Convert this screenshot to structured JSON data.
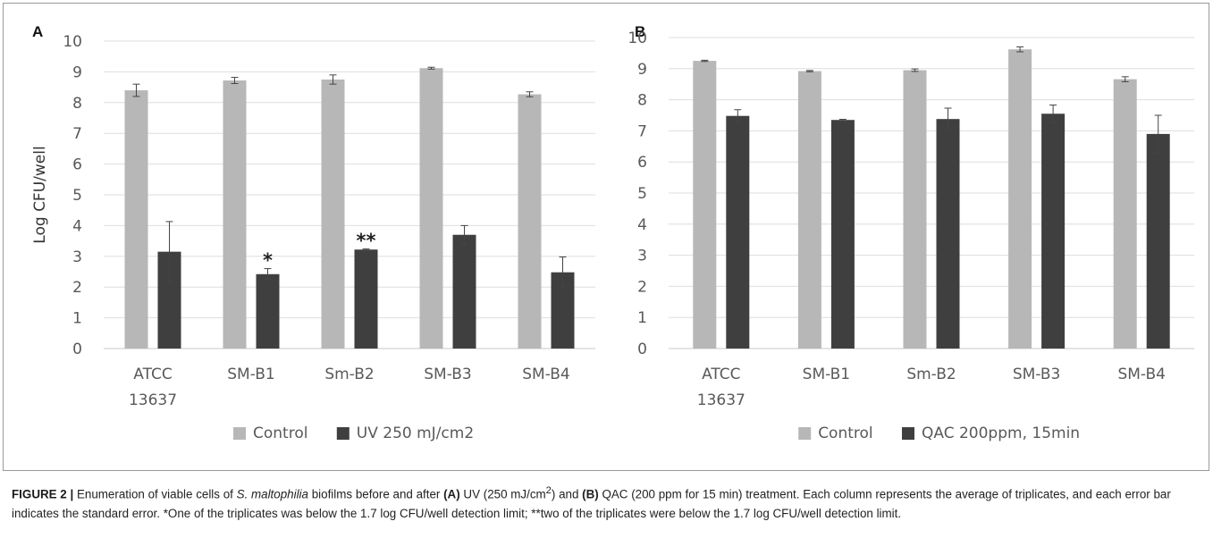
{
  "colors": {
    "control": "#b7b7b7",
    "treatment": "#3f3f3f",
    "grid": "#dedede",
    "axis_text": "#595959"
  },
  "chart_data": [
    {
      "panel_label": "A",
      "type": "bar",
      "ylabel": "Log CFU/well",
      "ylim": [
        0,
        10
      ],
      "yticks": [
        "0",
        "1",
        "2",
        "3",
        "4",
        "5",
        "6",
        "7",
        "8",
        "9",
        "10"
      ],
      "grid": true,
      "legend_position": "bottom",
      "categories": [
        [
          "ATCC",
          "13637"
        ],
        [
          "SM-B1"
        ],
        [
          "Sm-B2"
        ],
        [
          "SM-B3"
        ],
        [
          "SM-B4"
        ]
      ],
      "series": [
        {
          "name": "Control",
          "values": [
            8.4,
            8.72,
            8.75,
            9.12,
            8.27
          ],
          "errors": [
            0.2,
            0.1,
            0.15,
            0.03,
            0.08
          ]
        },
        {
          "name": "UV 250 mJ/cm2",
          "values": [
            3.15,
            2.42,
            3.22,
            3.7,
            2.48
          ],
          "errors": [
            0.98,
            0.18,
            0.02,
            0.3,
            0.5
          ]
        }
      ],
      "annotations": [
        {
          "category_index": 1,
          "series_index": 1,
          "text": "*"
        },
        {
          "category_index": 2,
          "series_index": 1,
          "text": "**"
        }
      ]
    },
    {
      "panel_label": "B",
      "type": "bar",
      "ylabel": "",
      "ylim": [
        0,
        10
      ],
      "yticks": [
        "0",
        "1",
        "2",
        "3",
        "4",
        "5",
        "6",
        "7",
        "8",
        "9",
        "10"
      ],
      "grid": true,
      "legend_position": "bottom",
      "categories": [
        [
          "ATCC",
          "13637"
        ],
        [
          "SM-B1"
        ],
        [
          "Sm-B2"
        ],
        [
          "SM-B3"
        ],
        [
          "SM-B4"
        ]
      ],
      "series": [
        {
          "name": "Control",
          "values": [
            9.25,
            8.92,
            8.95,
            9.62,
            8.66
          ],
          "errors": [
            0.02,
            0.02,
            0.04,
            0.08,
            0.08
          ]
        },
        {
          "name": "QAC 200ppm, 15min",
          "values": [
            7.48,
            7.35,
            7.38,
            7.55,
            6.9
          ],
          "errors": [
            0.2,
            0.02,
            0.35,
            0.28,
            0.6
          ]
        }
      ],
      "annotations": []
    }
  ],
  "caption": {
    "label": "FIGURE 2 |",
    "t1": " Enumeration of viable cells of ",
    "organism": "S. maltophilia",
    "t2": " biofilms before and after ",
    "tag_a": "(A)",
    "t3": " UV (250 mJ/cm",
    "sup": "2",
    "t4": ") and ",
    "tag_b": "(B)",
    "t5": " QAC (200 ppm for 15 min) treatment. Each column represents the average of triplicates, and each error bar indicates the standard error. *One of the triplicates was below the 1.7 log CFU/well detection limit; **two of the triplicates were below the 1.7 log CFU/well detection limit."
  }
}
